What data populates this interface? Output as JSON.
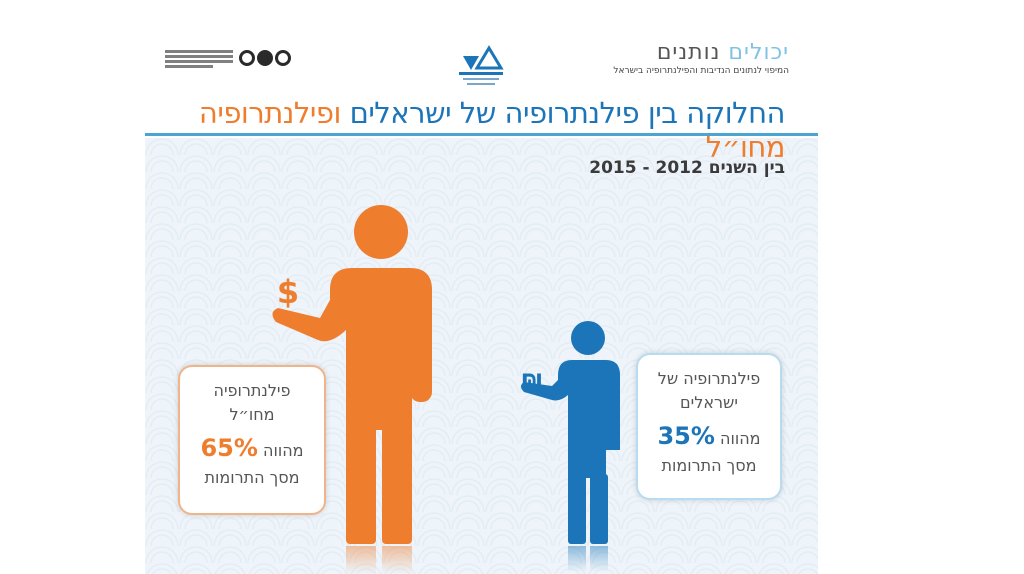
{
  "header": {
    "title_part1": "החלוקה בין פילנתרופיה של ישראלים",
    "title_part2": "ופילנתרופיה מחו״ל",
    "years": "בין השנים 2012 - 2015"
  },
  "logos": {
    "right_name_part1": "יכולים",
    "right_name_part2": "נותנים",
    "right_subtitle": "המיפוי לנתונים הנדיבות והפילנתרופיה בישראל"
  },
  "figures": {
    "abroad": {
      "label_line1": "פילנתרופיה",
      "label_line2": "מחו״ל",
      "percent": "65%",
      "percent_suffix": "מהווה",
      "label_line3": "מסך התרומות",
      "symbol": "$",
      "color": "#ef7d2e",
      "share": 65
    },
    "israeli": {
      "label_line1": "פילנתרופיה של",
      "label_line2": "ישראלים",
      "percent": "35%",
      "percent_suffix": "מהווה",
      "label_line3": "מסך התרומות",
      "symbol": "₪",
      "color": "#1b75b8",
      "share": 35
    }
  },
  "colors": {
    "accent_blue": "#1b75b8",
    "accent_orange": "#ef7d2e",
    "rule": "#4aa6d0"
  }
}
